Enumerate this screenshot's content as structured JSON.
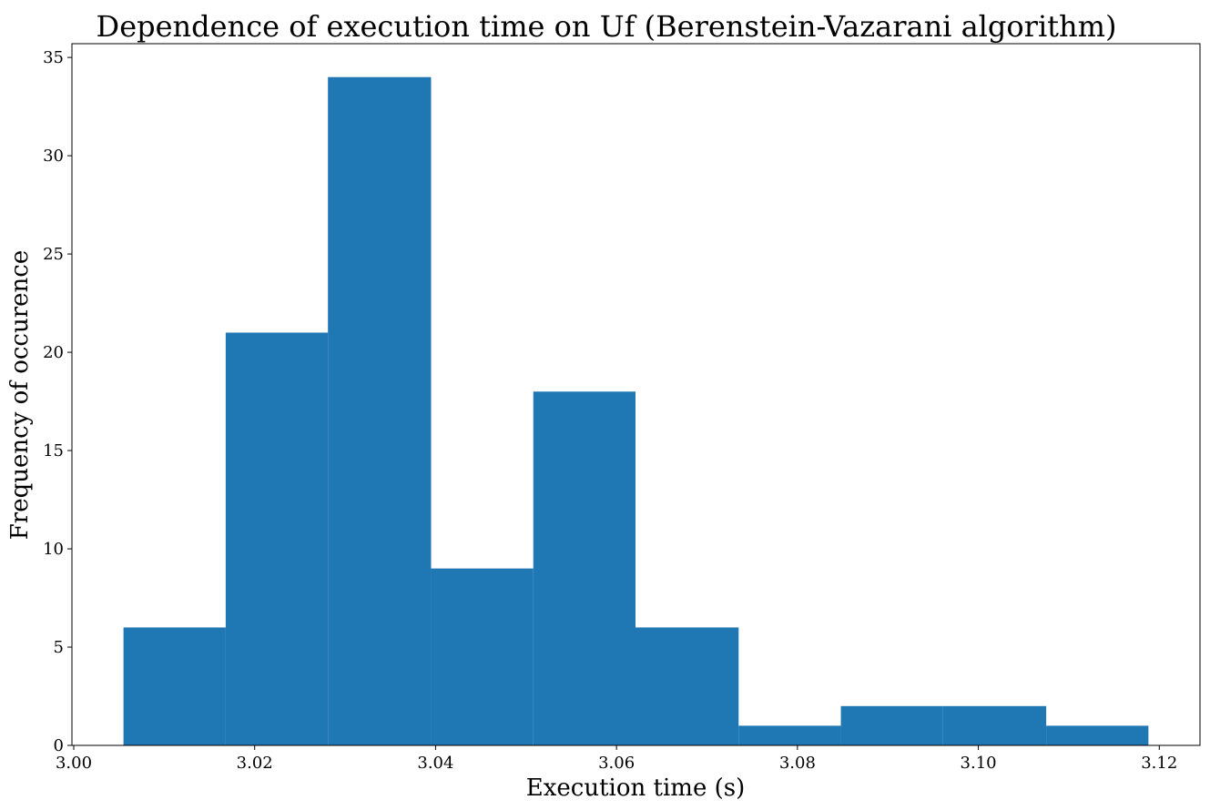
{
  "chart_data": {
    "type": "histogram",
    "title": "Dependence of execution time on Uf (Berenstein-Vazarani algorithm)",
    "x_label": "Execution time (s)",
    "y_label": "Frequency of occurence",
    "bins": [
      3.0055,
      3.0168,
      3.0281,
      3.0395,
      3.0508,
      3.0621,
      3.0735,
      3.0848,
      3.0961,
      3.1075,
      3.1188
    ],
    "counts": [
      6,
      21,
      34,
      9,
      18,
      6,
      1,
      2,
      2,
      1
    ],
    "color": "#1f77b4",
    "xlim": [
      2.9998,
      3.1245
    ],
    "xticks": [
      {
        "value": 3.0,
        "label": "3.00"
      },
      3.02,
      3.04,
      3.06,
      3.08,
      {
        "value": 3.1,
        "label": "3.10"
      },
      3.12
    ],
    "ylim": [
      0,
      35.7
    ],
    "yticks": [
      0,
      5,
      10,
      15,
      20,
      25,
      30,
      35
    ],
    "grid": false
  }
}
